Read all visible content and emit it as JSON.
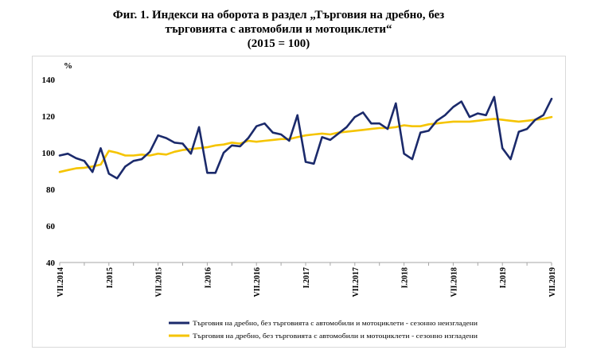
{
  "title": {
    "line1": "Фиг. 1. Индекси на оборота в раздел „Търговия на дребно, без",
    "line2": "търговията с автомобили и мотоциклети“",
    "line3": "(2015 = 100)"
  },
  "chart_data": {
    "type": "line",
    "ylabel": "%",
    "ylim": [
      40,
      140
    ],
    "yticks": [
      40,
      60,
      80,
      100,
      120,
      140
    ],
    "x_tick_labels": [
      {
        "index": 0,
        "label": "VII.2014"
      },
      {
        "index": 6,
        "label": "I.2015"
      },
      {
        "index": 12,
        "label": "VII.2015"
      },
      {
        "index": 18,
        "label": "I.2016"
      },
      {
        "index": 24,
        "label": "VII.2016"
      },
      {
        "index": 30,
        "label": "I.2017"
      },
      {
        "index": 36,
        "label": "VII.2017"
      },
      {
        "index": 42,
        "label": "I.2018"
      },
      {
        "index": 48,
        "label": "VII.2018"
      },
      {
        "index": 54,
        "label": "I.2019"
      },
      {
        "index": 60,
        "label": "VII.2019"
      }
    ],
    "legend_position": "bottom",
    "grid": false,
    "series": [
      {
        "name": "Търговия на дребно, без търговията с автомобили и мотоциклети - сезонно неизгладени",
        "color": "#1b2a6b",
        "values": [
          98.5,
          99.5,
          97,
          95.5,
          89.5,
          102.5,
          88.5,
          86,
          92.5,
          95.5,
          96.5,
          100.5,
          109.5,
          108,
          105.5,
          105,
          99.5,
          114,
          89,
          89,
          100,
          104,
          103.5,
          108,
          114.5,
          116,
          111,
          110,
          106.5,
          120.5,
          95,
          94,
          108.5,
          107,
          110.5,
          114,
          119.5,
          122,
          116,
          116,
          113,
          127,
          99.5,
          96.5,
          111,
          112,
          117.5,
          120.5,
          125,
          128,
          119.5,
          121.5,
          120.5,
          130.5,
          102.5,
          96.5,
          111.5,
          113,
          118,
          120.5,
          129.5
        ]
      },
      {
        "name": "Търговия на дребно, без търговията с автомобили и мотоциклети - сезонно изгладени",
        "color": "#f5c400",
        "values": [
          89.5,
          90.5,
          91.5,
          91.8,
          92.5,
          93.5,
          101,
          100,
          98.5,
          98.5,
          99,
          98.5,
          99.5,
          99,
          100.5,
          101.5,
          102,
          102.5,
          103,
          104,
          104.5,
          105.5,
          105,
          106.5,
          106,
          106.5,
          107,
          107.5,
          107.5,
          108.5,
          109.5,
          110,
          110.5,
          110,
          111,
          111.5,
          112,
          112.5,
          113,
          113.5,
          113.5,
          114,
          115,
          114.5,
          114.5,
          115.5,
          116,
          116.5,
          117,
          117,
          117,
          117.5,
          118,
          118.5,
          118,
          117.5,
          117,
          117.5,
          118,
          118.5,
          119.5
        ]
      }
    ]
  }
}
